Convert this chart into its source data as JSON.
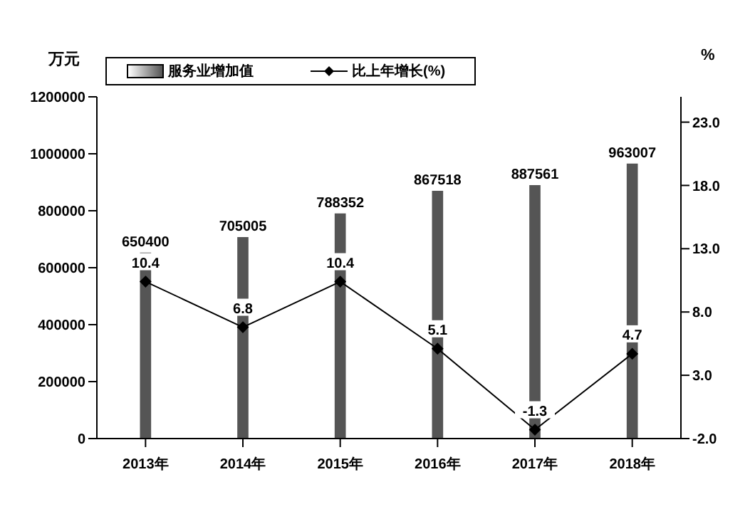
{
  "chart_data": {
    "type": "bar",
    "categories": [
      "2013年",
      "2014年",
      "2015年",
      "2016年",
      "2017年",
      "2018年"
    ],
    "series": [
      {
        "name": "服务业增加值",
        "color": "#555555",
        "values": [
          650400,
          705005,
          788352,
          867518,
          887561,
          963007
        ]
      },
      {
        "name": "比上年增长(%)",
        "type": "line",
        "axis": "y2",
        "color": "#000000",
        "values": [
          10.4,
          6.8,
          10.4,
          5.1,
          -1.3,
          4.7
        ]
      }
    ],
    "ylabel": "万元",
    "y2label": "%",
    "ylim": [
      0,
      1200000
    ],
    "yticks": [
      0,
      200000,
      400000,
      600000,
      800000,
      1000000,
      1200000
    ],
    "y2lim": [
      -2,
      25
    ],
    "y2ticks": [
      {
        "value": -2,
        "label": "-2.0"
      },
      {
        "value": 3,
        "label": "3.0"
      },
      {
        "value": 8,
        "label": "8.0"
      },
      {
        "value": 13,
        "label": "13.0"
      },
      {
        "value": 18,
        "label": "18.0"
      },
      {
        "value": 23,
        "label": "23.0"
      }
    ],
    "data_labels": true,
    "legend": "top",
    "grid": false,
    "marker": "diamond"
  }
}
